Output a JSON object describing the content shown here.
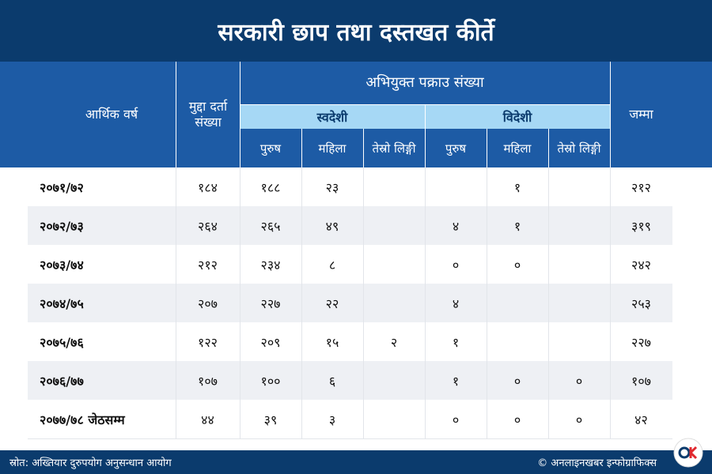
{
  "title": "सरकारी छाप तथा दस्तखत कीर्ते",
  "header": {
    "year": "आर्थिक वर्ष",
    "cases": "मुद्दा दर्ता संख्या",
    "arrested": "अभियुक्त पक्राउ संख्या",
    "domestic": "स्वदेशी",
    "foreign": "विदेशी",
    "subcols": [
      "पुरुष",
      "महिला",
      "तेस्रो लिङ्गी",
      "पुरुष",
      "महिला",
      "तेस्रो लिङ्गी"
    ],
    "total": "जम्मा"
  },
  "table": {
    "rows": [
      [
        "२०७१/७२",
        "१८४",
        "१८८",
        "२३",
        null,
        null,
        "१",
        null,
        "२१२"
      ],
      [
        "२०७२/७३",
        "२६४",
        "२६५",
        "४९",
        null,
        "४",
        "१",
        null,
        "३१९"
      ],
      [
        "२०७३/७४",
        "२१२",
        "२३४",
        "८",
        null,
        "०",
        "०",
        null,
        "२४२"
      ],
      [
        "२०७४/७५",
        "२०७",
        "२२७",
        "२२",
        null,
        "४",
        null,
        null,
        "२५३"
      ],
      [
        "२०७५/७६",
        "१२२",
        "२०९",
        "१५",
        "२",
        "१",
        null,
        null,
        "२२७"
      ],
      [
        "२०७६/७७",
        "१०७",
        "१००",
        "६",
        null,
        "१",
        "०",
        "०",
        "१०७"
      ],
      [
        "२०७७/७८ जेठसम्म",
        "४४",
        "३९",
        "३",
        null,
        "०",
        "०",
        "०",
        "४२"
      ]
    ]
  },
  "footer": {
    "source": "स्रोत: अख्तियार दुरुपयोग अनुसन्धान आयोग",
    "credit": "© अनलाइनखबर इन्फोग्राफिक्स"
  }
}
